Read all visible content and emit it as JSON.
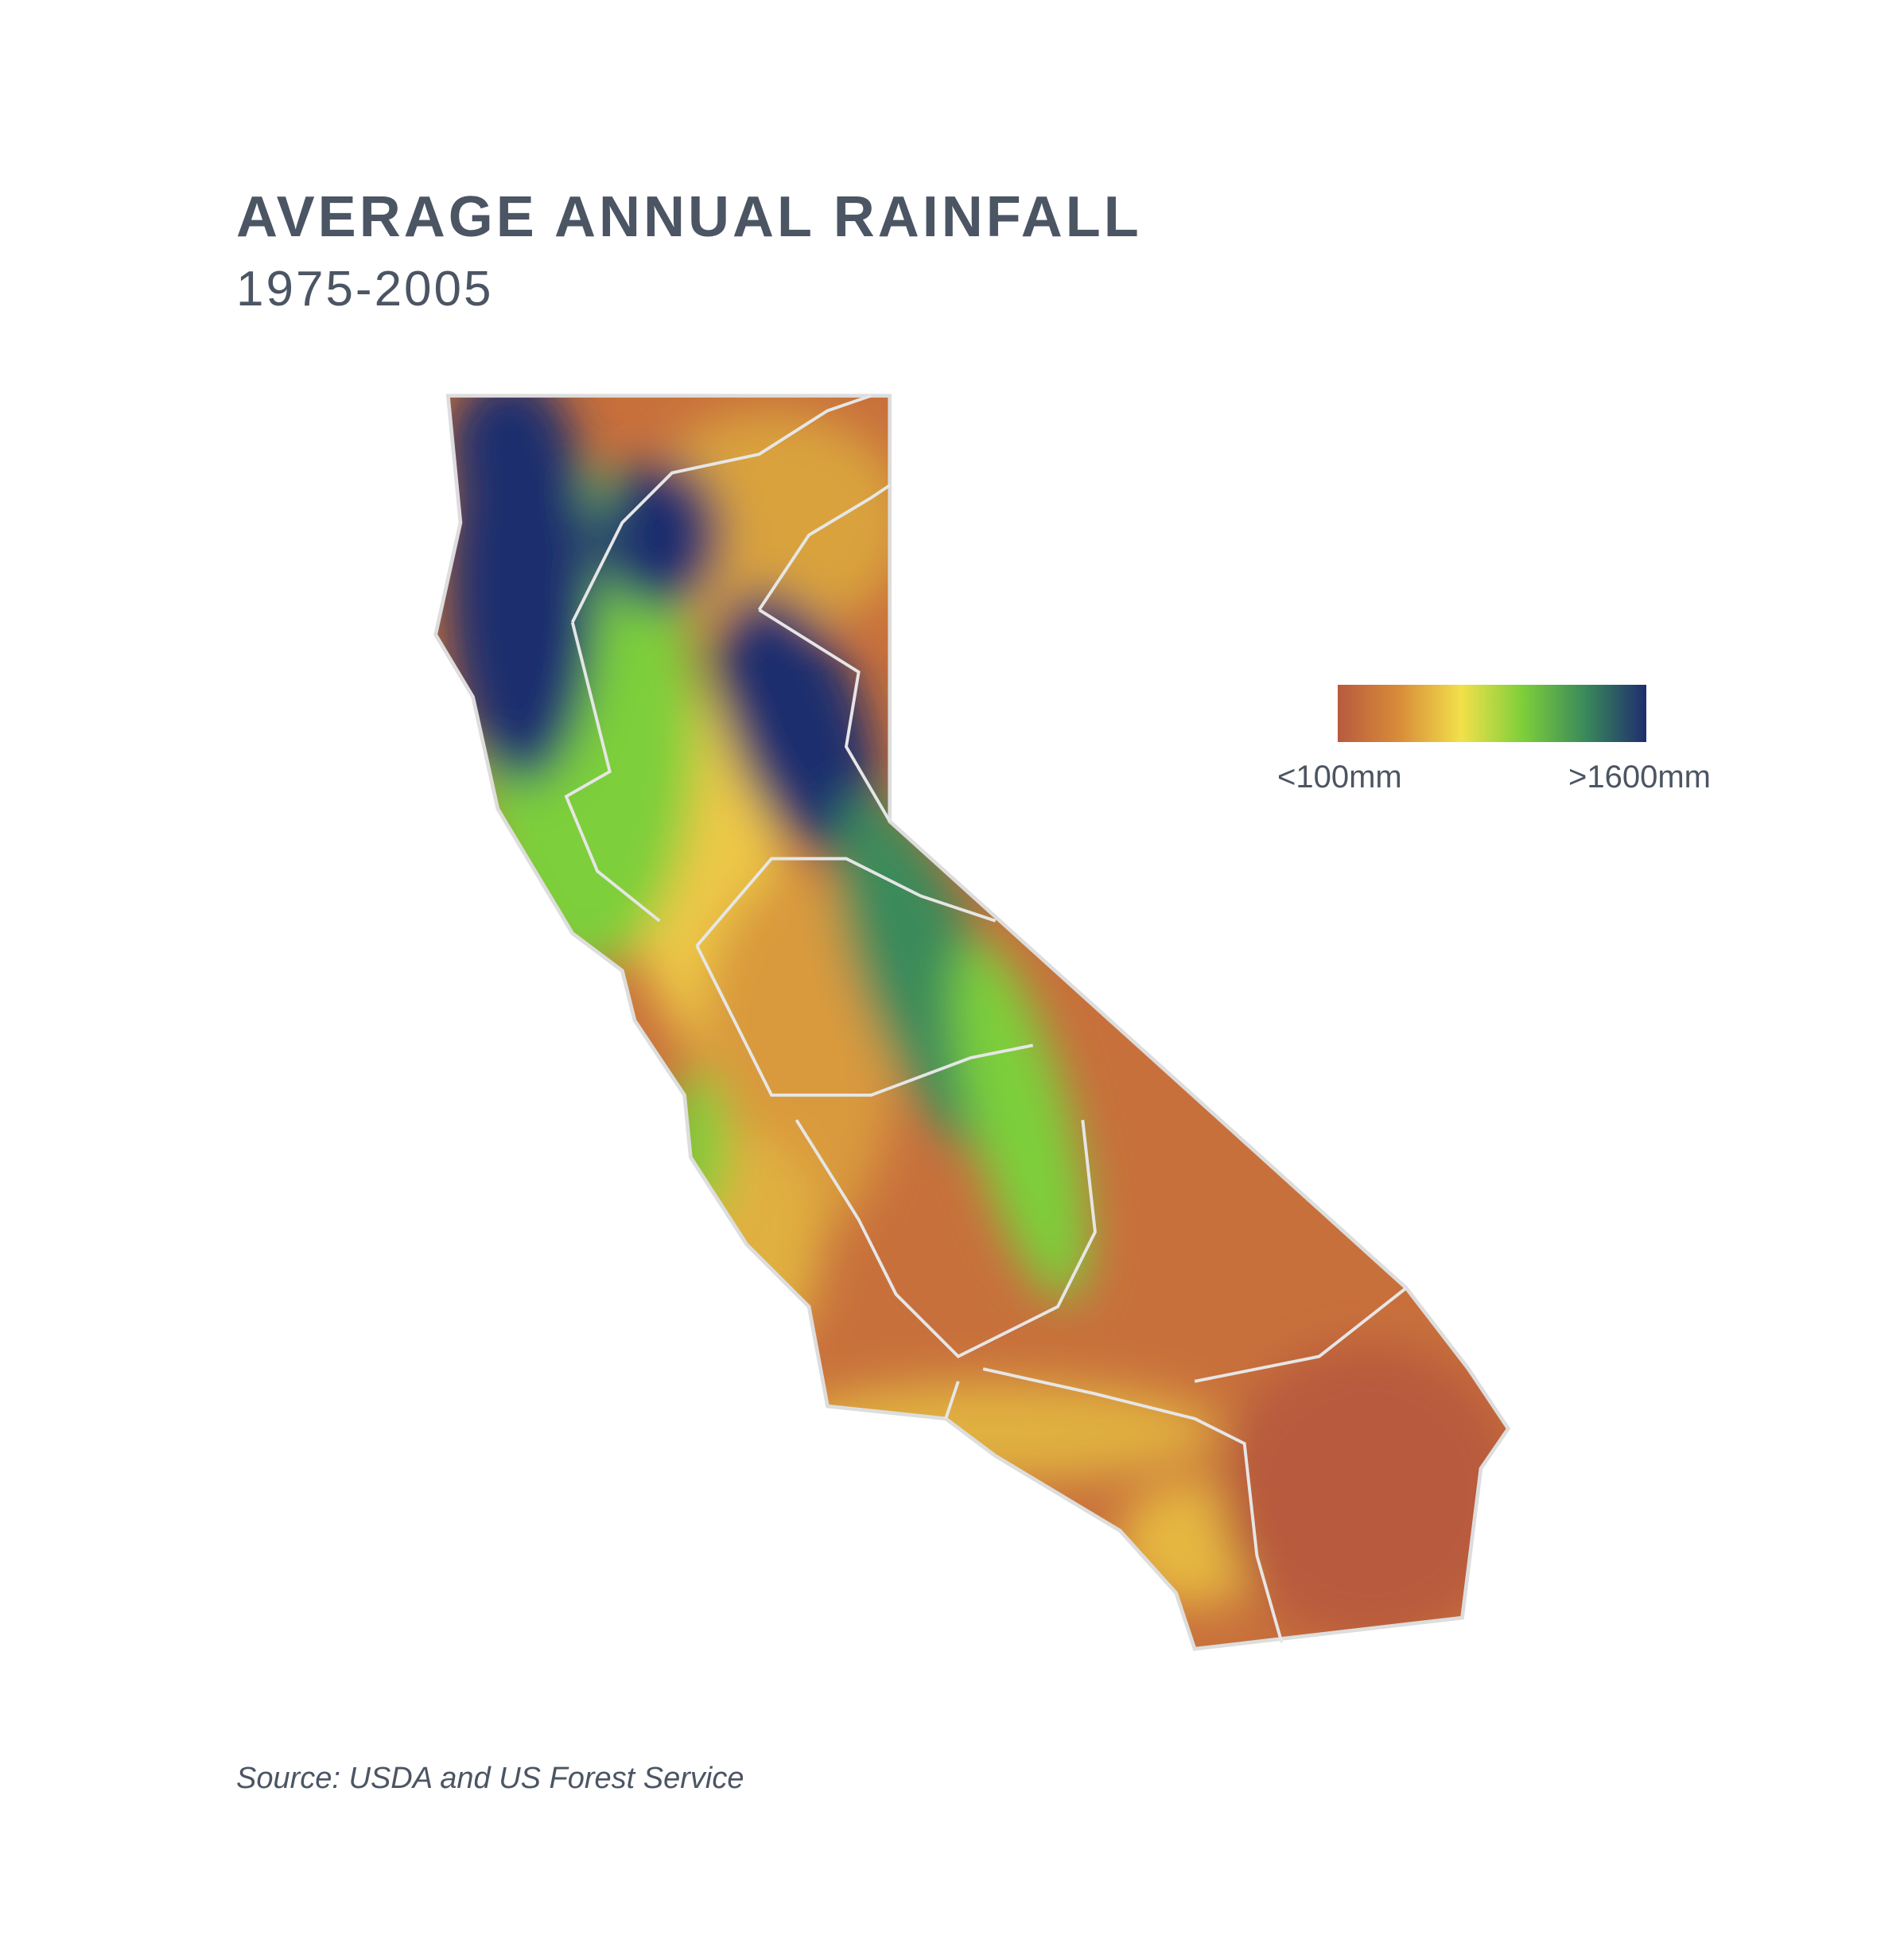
{
  "header": {
    "title": "AVERAGE ANNUAL RAINFALL",
    "subtitle": "1975-2005"
  },
  "legend": {
    "min_label": "<100mm",
    "max_label": ">1600mm",
    "colors": [
      "#b85a3e",
      "#d98c3a",
      "#f2e04a",
      "#7dcf3a",
      "#3a8a5a",
      "#1f2d6e"
    ]
  },
  "source": "Source: USDA and US Forest Service"
}
